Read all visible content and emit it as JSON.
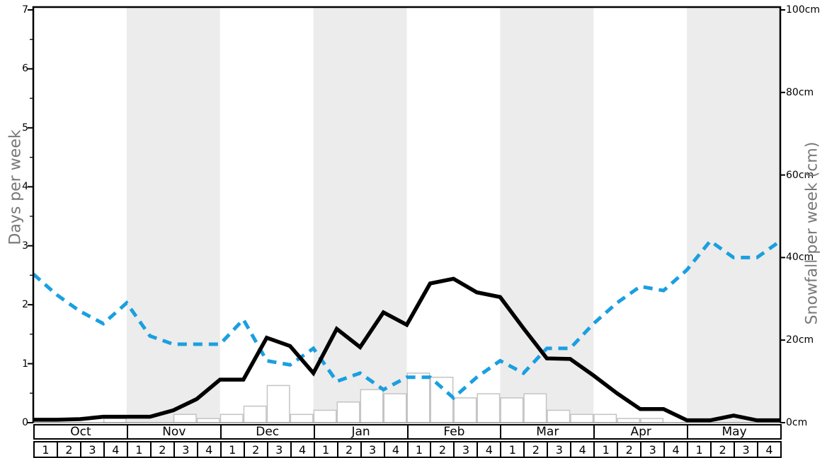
{
  "chart_data": {
    "type": "line+bar",
    "title": "",
    "months": [
      "Oct",
      "Nov",
      "Dec",
      "Jan",
      "Feb",
      "Mar",
      "Apr",
      "May"
    ],
    "week_labels": [
      "1",
      "2",
      "3",
      "4"
    ],
    "shaded_months": [
      "Nov",
      "Jan",
      "Mar",
      "May"
    ],
    "left_axis": {
      "label": "Days per week",
      "min": 0,
      "max": 7,
      "tick_labels": [
        "0",
        "1",
        "2",
        "3",
        "4",
        "5",
        "6",
        "7"
      ],
      "minor_tick_step": 0.5
    },
    "right_axis": {
      "label": "Snowfall per week (cm)",
      "min": 0,
      "max": 100,
      "tick_values": [
        0,
        20,
        40,
        60,
        80,
        100
      ],
      "tick_labels": [
        "0cm",
        "20cm",
        "40cm",
        "60cm",
        "80cm",
        "100cm"
      ]
    },
    "x_points_per_month": 4,
    "series": [
      {
        "name": "snow_days_per_week",
        "type": "line",
        "line_style": "solid",
        "color": "#000000",
        "axis": "left",
        "values": [
          0.05,
          0.05,
          0.06,
          0.1,
          0.1,
          0.1,
          0.21,
          0.4,
          0.73,
          0.73,
          1.44,
          1.3,
          0.84,
          1.59,
          1.28,
          1.87,
          1.66,
          2.36,
          2.44,
          2.21,
          2.13,
          1.6,
          1.09,
          1.08,
          0.8,
          0.5,
          0.23,
          0.23,
          0.04,
          0.04,
          0.12,
          0.04,
          0.04
        ]
      },
      {
        "name": "snowfall_per_week_cm",
        "type": "line",
        "line_style": "dashed",
        "color": "#1a9fe0",
        "axis": "right",
        "values": [
          36,
          31,
          27,
          24,
          29,
          21,
          19,
          19,
          19,
          25,
          15,
          14,
          18,
          10,
          12,
          8,
          11,
          11,
          6,
          11,
          15,
          12,
          18,
          18,
          24,
          29,
          33,
          32,
          37,
          44,
          40,
          40,
          44
        ]
      },
      {
        "name": "weekly_snowfall_bars_cm",
        "type": "bar",
        "fill": "#ffffff",
        "border": "#c4c4c4",
        "axis": "right",
        "values": [
          0,
          0,
          0,
          1,
          0,
          0,
          2,
          1,
          2,
          4,
          9,
          2,
          3,
          5,
          8,
          7,
          12,
          11,
          6,
          7,
          6,
          7,
          3,
          2,
          2,
          1,
          1,
          0,
          0,
          0,
          0,
          0
        ]
      }
    ],
    "colors": {
      "month_band": "#ececec",
      "frame": "#000000",
      "baseline": "#999999",
      "axis_title": "#787878"
    },
    "legend": "none",
    "grid": "off"
  }
}
